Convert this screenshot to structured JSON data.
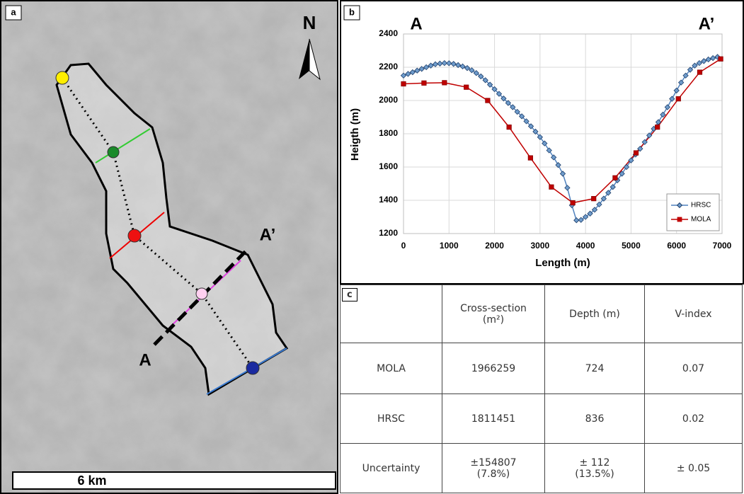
{
  "panel_a": {
    "label": "a",
    "north": "N",
    "section_start": "A",
    "section_end": "A’",
    "scale_bar": "6 km"
  },
  "chart_data": {
    "type": "line",
    "label": "b",
    "annotations": [
      "A",
      "A’"
    ],
    "xlabel": "Length (m)",
    "ylabel": "Heigth (m)",
    "xlim": [
      0,
      7000
    ],
    "ylim": [
      1200,
      2400
    ],
    "xticks": [
      0,
      1000,
      2000,
      3000,
      4000,
      5000,
      6000,
      7000
    ],
    "yticks": [
      1200,
      1400,
      1600,
      1800,
      2000,
      2200,
      2400
    ],
    "grid": true,
    "legend": "lower right",
    "series": [
      {
        "name": "HRSC",
        "color": "#4f81bd",
        "marker": "diamond",
        "x": [
          0,
          100,
          200,
          300,
          400,
          500,
          600,
          700,
          800,
          900,
          1000,
          1100,
          1200,
          1300,
          1400,
          1500,
          1600,
          1700,
          1800,
          1900,
          2000,
          2100,
          2200,
          2300,
          2400,
          2500,
          2600,
          2700,
          2800,
          2900,
          3000,
          3100,
          3200,
          3300,
          3400,
          3500,
          3600,
          3700,
          3800,
          3900,
          4000,
          4100,
          4200,
          4300,
          4400,
          4500,
          4600,
          4700,
          4800,
          4900,
          5000,
          5100,
          5200,
          5300,
          5400,
          5500,
          5600,
          5700,
          5800,
          5900,
          6000,
          6100,
          6200,
          6300,
          6400,
          6500,
          6600,
          6700,
          6800,
          6900
        ],
        "values": [
          2150,
          2160,
          2170,
          2180,
          2190,
          2200,
          2210,
          2218,
          2222,
          2225,
          2224,
          2220,
          2213,
          2205,
          2195,
          2182,
          2165,
          2145,
          2122,
          2095,
          2068,
          2040,
          2012,
          1985,
          1960,
          1932,
          1905,
          1875,
          1845,
          1813,
          1780,
          1742,
          1700,
          1658,
          1612,
          1560,
          1475,
          1370,
          1280,
          1282,
          1300,
          1320,
          1343,
          1375,
          1410,
          1445,
          1480,
          1520,
          1560,
          1600,
          1640,
          1675,
          1710,
          1750,
          1790,
          1830,
          1870,
          1915,
          1960,
          2010,
          2060,
          2108,
          2150,
          2185,
          2210,
          2225,
          2237,
          2247,
          2255,
          2262
        ]
      },
      {
        "name": "MOLA",
        "color": "#c00000",
        "marker": "square",
        "x": [
          0,
          450,
          900,
          1380,
          1850,
          2320,
          2790,
          3250,
          3720,
          4180,
          4650,
          5110,
          5580,
          6040,
          6510,
          6970
        ],
        "values": [
          2100,
          2105,
          2107,
          2080,
          2000,
          1840,
          1655,
          1480,
          1385,
          1410,
          1535,
          1685,
          1840,
          2010,
          2170,
          2250
        ]
      }
    ]
  },
  "table": {
    "label": "c",
    "header": [
      "Cross-section (m²)",
      "Depth (m)",
      "V-index"
    ],
    "rows": [
      [
        "MOLA",
        "1966259",
        "724",
        "0.07"
      ],
      [
        "HRSC",
        "1811451",
        "836",
        "0.02"
      ],
      [
        "Uncertainty",
        "±154807 (7.8%)",
        "± 112 (13.5%)",
        "± 0.05"
      ]
    ]
  }
}
